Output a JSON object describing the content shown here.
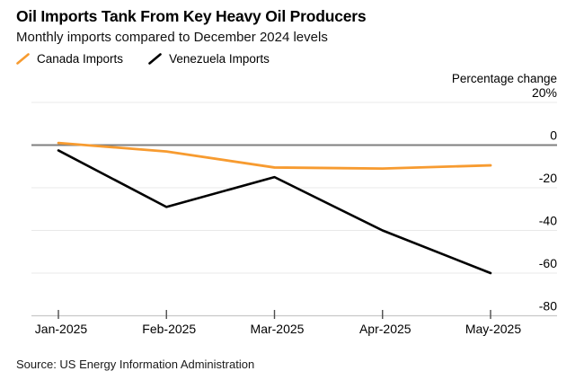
{
  "header": {
    "title": "Oil Imports Tank From Key Heavy Oil Producers",
    "subtitle": "Monthly imports compared to December 2024 levels"
  },
  "legend": {
    "items": [
      {
        "label": "Canada Imports",
        "icon": "slash-icon",
        "color": "#F79B30"
      },
      {
        "label": "Venezuela Imports",
        "icon": "slash-icon",
        "color": "#000000"
      }
    ]
  },
  "axis": {
    "unit_label": "Percentage change",
    "y_tick_labels": [
      "20%",
      "0",
      "-20",
      "-40",
      "-60",
      "-80"
    ],
    "x_tick_labels": [
      "Jan-2025",
      "Feb-2025",
      "Mar-2025",
      "Apr-2025",
      "May-2025"
    ]
  },
  "source": "Source: US Energy Information Administration",
  "colors": {
    "canada_orange": "#F79B30",
    "venezuela_black": "#000000",
    "zero_line": "#7F7F7F",
    "gridline": "#E9E9E9",
    "axis_line": "#C8C8C8",
    "tick": "#4D4D4D"
  },
  "chart_data": {
    "type": "line",
    "title": "Oil Imports Tank From Key Heavy Oil Producers",
    "subtitle": "Monthly imports compared to December 2024 levels",
    "ylabel": "Percentage change",
    "categories": [
      "Jan-2025",
      "Feb-2025",
      "Mar-2025",
      "Apr-2025",
      "May-2025"
    ],
    "series": [
      {
        "name": "Canada Imports",
        "color": "#F79B30",
        "values": [
          1,
          -3,
          -10.5,
          -11,
          -9.5
        ]
      },
      {
        "name": "Venezuela Imports",
        "color": "#000000",
        "values": [
          -2.5,
          -29,
          -15,
          -40,
          -60
        ]
      }
    ],
    "ylim": [
      -80,
      20
    ],
    "yticks": [
      20,
      0,
      -20,
      -40,
      -60,
      -80
    ],
    "grid": "horizontal-only",
    "legend_position": "top-left",
    "unit": "percent change vs December 2024"
  }
}
